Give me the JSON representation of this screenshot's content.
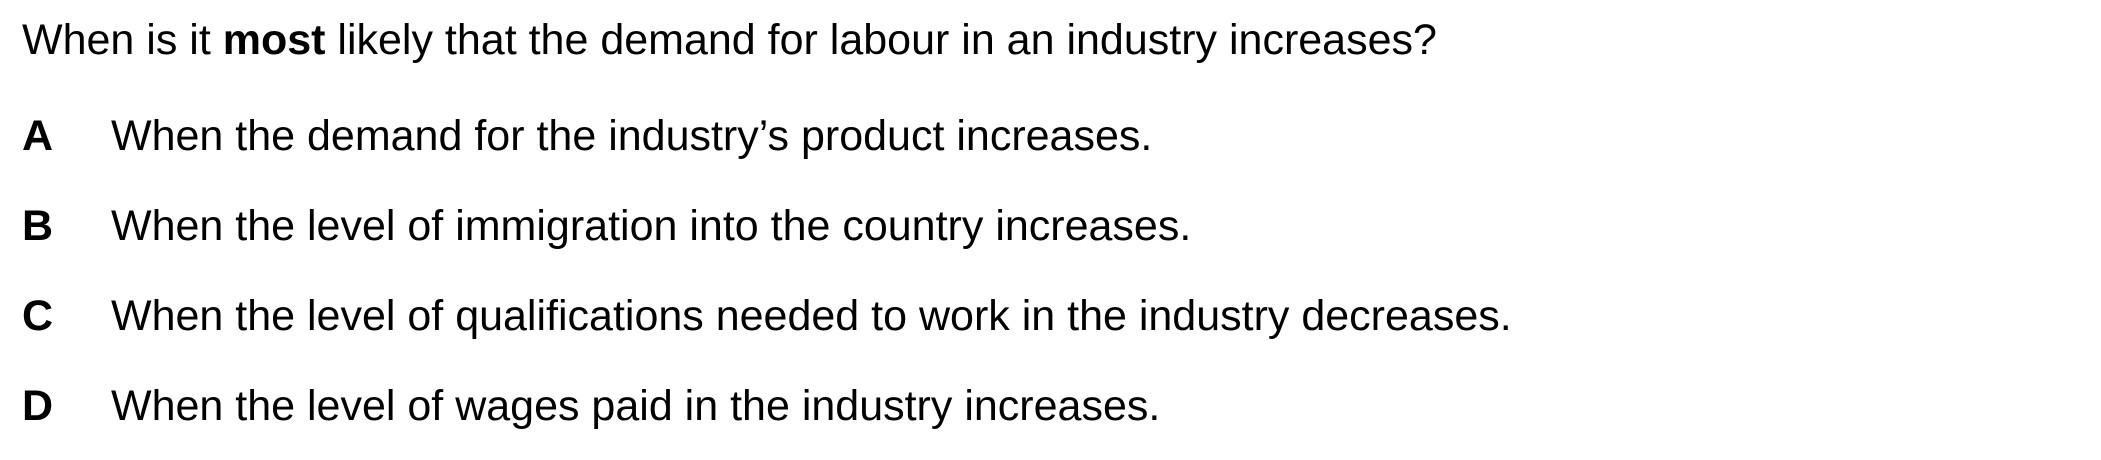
{
  "question": {
    "before": "When is it ",
    "emphasis": "most",
    "after": " likely that the demand for labour in an industry increases?"
  },
  "options": [
    {
      "letter": "A",
      "text": "When the demand for the industry’s product increases."
    },
    {
      "letter": "B",
      "text": "When the level of immigration into the country increases."
    },
    {
      "letter": "C",
      "text": "When the level of qualifications needed to work in the industry decreases."
    },
    {
      "letter": "D",
      "text": "When the level of wages paid in the industry increases."
    }
  ]
}
